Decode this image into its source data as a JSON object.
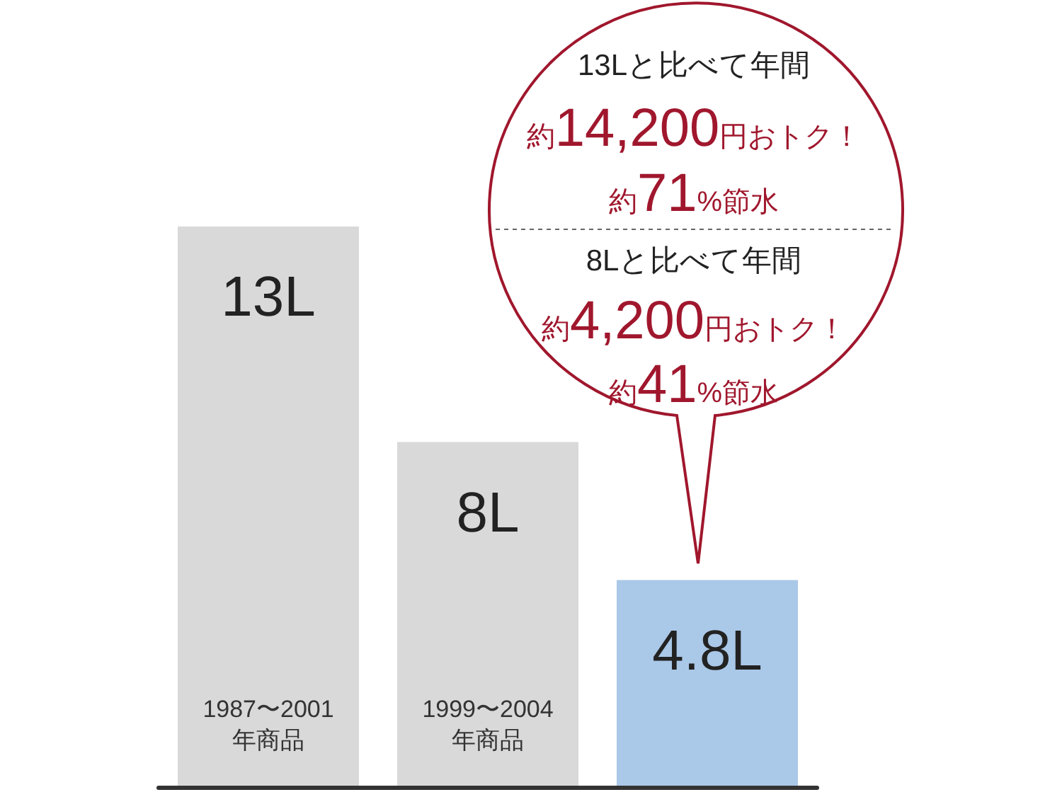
{
  "chart_data": {
    "type": "bar",
    "categories": [
      "1987〜2001\n年商品",
      "1999〜2004\n年商品",
      null
    ],
    "values": [
      13,
      8,
      4.8
    ],
    "colors": [
      "#d9d9d9",
      "#d9d9d9",
      "#aac8e8"
    ],
    "value_labels": [
      "13L",
      "8L",
      "4.8L"
    ],
    "annotations": [
      "13Lと比べて年間",
      "約14,200円おトク！",
      "約71%節水",
      "8Lと比べて年間",
      "約4,200円おトク！",
      "約41%節水"
    ],
    "tick_labels": "x",
    "grid": false
  }
}
